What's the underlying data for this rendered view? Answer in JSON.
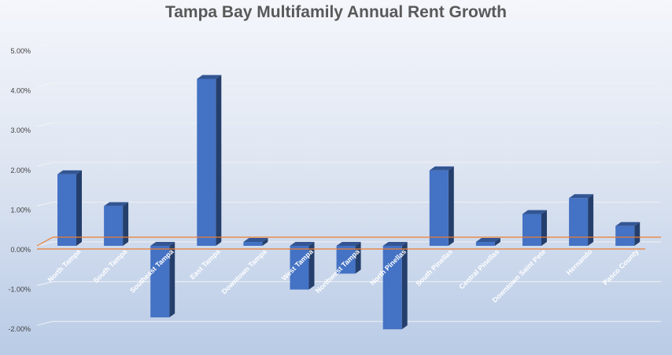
{
  "chart_data": {
    "type": "bar",
    "title": "Tampa Bay Multifamily Annual Rent Growth",
    "xlabel": "",
    "ylabel": "",
    "categories": [
      "North Tampa",
      "South Tampa",
      "Southeast Tampa",
      "East Tampa",
      "Downtown Tampa",
      "West Tampa",
      "Northwest Tampa",
      "North Pinellas",
      "South Pinellas",
      "Central Pinellas",
      "Downtown Saint Pete",
      "Hernando",
      "Pasco County"
    ],
    "values": [
      1.8,
      1.0,
      -1.8,
      4.2,
      0.1,
      -1.1,
      -0.7,
      -2.1,
      1.9,
      0.1,
      0.8,
      1.2,
      0.5
    ],
    "y_ticks": [
      "-2.00%",
      "-1.00%",
      "0.00%",
      "1.00%",
      "2.00%",
      "3.00%",
      "4.00%",
      "5.00%"
    ],
    "ylim": [
      -2,
      5
    ],
    "grid": true,
    "legend": "none",
    "bar_color": "#4472c4",
    "zero_line_color": "#ed7d31"
  }
}
